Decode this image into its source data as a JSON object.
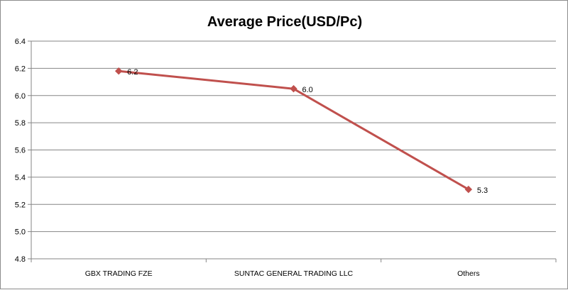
{
  "chart_data": {
    "type": "line",
    "title": "Average Price(USD/Pc)",
    "xlabel": "",
    "ylabel": "",
    "categories": [
      "GBX TRADING FZE",
      "SUNTAC GENERAL TRADING LLC",
      "Others"
    ],
    "series": [
      {
        "values": [
          6.18,
          6.05,
          5.31
        ],
        "data_labels": [
          "6.2",
          "6.0",
          "5.3"
        ],
        "color": "#c0504d"
      }
    ],
    "ylim": [
      4.8,
      6.4
    ],
    "yticks": [
      "4.8",
      "5.0",
      "5.2",
      "5.4",
      "5.6",
      "5.8",
      "6.0",
      "6.2",
      "6.4"
    ],
    "grid": true,
    "legend": "none"
  }
}
